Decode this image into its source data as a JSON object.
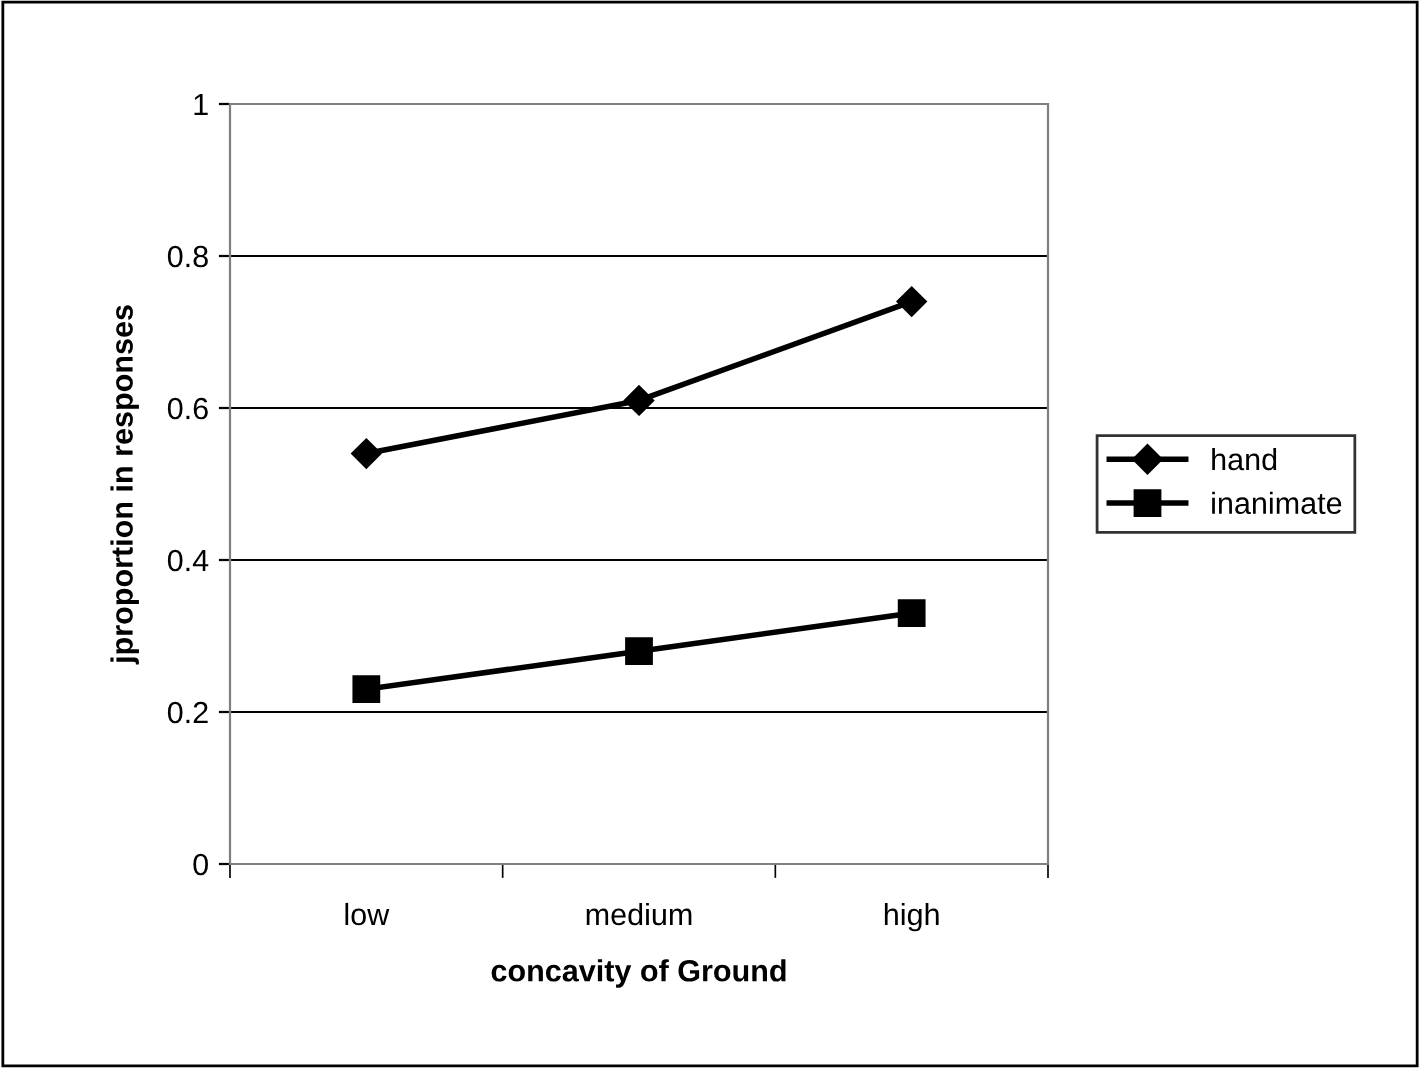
{
  "chart_data": {
    "type": "line",
    "xlabel": "concavity of Ground",
    "ylabel": "jproportion in responses",
    "categories": [
      "low",
      "medium",
      "high"
    ],
    "series": [
      {
        "name": "hand",
        "color": "#000000",
        "marker": "diamond",
        "values": [
          0.54,
          0.61,
          0.74
        ]
      },
      {
        "name": "inanimate",
        "color": "#000000",
        "marker": "square",
        "values": [
          0.23,
          0.28,
          0.33
        ]
      }
    ],
    "ylim": [
      0,
      1
    ],
    "yticks": [
      0,
      {
        "value": 0.2,
        "label": "0.2"
      },
      {
        "value": 0.4,
        "label": "0.4"
      },
      {
        "value": 0.6,
        "label": "0.6"
      },
      {
        "value": 0.8,
        "label": "0.8"
      },
      1
    ],
    "grid": "y",
    "legend": "right",
    "line_style": "solid"
  }
}
